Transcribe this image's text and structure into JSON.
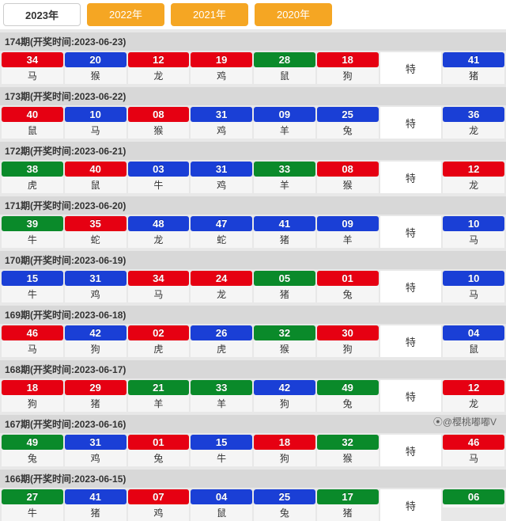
{
  "tabs": [
    "2023年",
    "2022年",
    "2021年",
    "2020年"
  ],
  "active_tab": 0,
  "special_label": "特",
  "colors": {
    "red": "#e60012",
    "blue": "#1a3fd6",
    "green": "#0a8a2a"
  },
  "watermark": "⦿@樱桃嘟嘟V",
  "periods": [
    {
      "period": "174",
      "date": "2023-06-23",
      "cells": [
        {
          "n": "34",
          "z": "马",
          "c": "red"
        },
        {
          "n": "20",
          "z": "猴",
          "c": "blue"
        },
        {
          "n": "12",
          "z": "龙",
          "c": "red"
        },
        {
          "n": "19",
          "z": "鸡",
          "c": "red"
        },
        {
          "n": "28",
          "z": "鼠",
          "c": "green"
        },
        {
          "n": "18",
          "z": "狗",
          "c": "red"
        },
        {
          "n": "41",
          "z": "猪",
          "c": "blue"
        }
      ]
    },
    {
      "period": "173",
      "date": "2023-06-22",
      "cells": [
        {
          "n": "40",
          "z": "鼠",
          "c": "red"
        },
        {
          "n": "10",
          "z": "马",
          "c": "blue"
        },
        {
          "n": "08",
          "z": "猴",
          "c": "red"
        },
        {
          "n": "31",
          "z": "鸡",
          "c": "blue"
        },
        {
          "n": "09",
          "z": "羊",
          "c": "blue"
        },
        {
          "n": "25",
          "z": "兔",
          "c": "blue"
        },
        {
          "n": "36",
          "z": "龙",
          "c": "blue"
        }
      ]
    },
    {
      "period": "172",
      "date": "2023-06-21",
      "cells": [
        {
          "n": "38",
          "z": "虎",
          "c": "green"
        },
        {
          "n": "40",
          "z": "鼠",
          "c": "red"
        },
        {
          "n": "03",
          "z": "牛",
          "c": "blue"
        },
        {
          "n": "31",
          "z": "鸡",
          "c": "blue"
        },
        {
          "n": "33",
          "z": "羊",
          "c": "green"
        },
        {
          "n": "08",
          "z": "猴",
          "c": "red"
        },
        {
          "n": "12",
          "z": "龙",
          "c": "red"
        }
      ]
    },
    {
      "period": "171",
      "date": "2023-06-20",
      "cells": [
        {
          "n": "39",
          "z": "牛",
          "c": "green"
        },
        {
          "n": "35",
          "z": "蛇",
          "c": "red"
        },
        {
          "n": "48",
          "z": "龙",
          "c": "blue"
        },
        {
          "n": "47",
          "z": "蛇",
          "c": "blue"
        },
        {
          "n": "41",
          "z": "猪",
          "c": "blue"
        },
        {
          "n": "09",
          "z": "羊",
          "c": "blue"
        },
        {
          "n": "10",
          "z": "马",
          "c": "blue"
        }
      ]
    },
    {
      "period": "170",
      "date": "2023-06-19",
      "cells": [
        {
          "n": "15",
          "z": "牛",
          "c": "blue"
        },
        {
          "n": "31",
          "z": "鸡",
          "c": "blue"
        },
        {
          "n": "34",
          "z": "马",
          "c": "red"
        },
        {
          "n": "24",
          "z": "龙",
          "c": "red"
        },
        {
          "n": "05",
          "z": "猪",
          "c": "green"
        },
        {
          "n": "01",
          "z": "兔",
          "c": "red"
        },
        {
          "n": "10",
          "z": "马",
          "c": "blue"
        }
      ]
    },
    {
      "period": "169",
      "date": "2023-06-18",
      "cells": [
        {
          "n": "46",
          "z": "马",
          "c": "red"
        },
        {
          "n": "42",
          "z": "狗",
          "c": "blue"
        },
        {
          "n": "02",
          "z": "虎",
          "c": "red"
        },
        {
          "n": "26",
          "z": "虎",
          "c": "blue"
        },
        {
          "n": "32",
          "z": "猴",
          "c": "green"
        },
        {
          "n": "30",
          "z": "狗",
          "c": "red"
        },
        {
          "n": "04",
          "z": "鼠",
          "c": "blue"
        }
      ]
    },
    {
      "period": "168",
      "date": "2023-06-17",
      "cells": [
        {
          "n": "18",
          "z": "狗",
          "c": "red"
        },
        {
          "n": "29",
          "z": "猪",
          "c": "red"
        },
        {
          "n": "21",
          "z": "羊",
          "c": "green"
        },
        {
          "n": "33",
          "z": "羊",
          "c": "green"
        },
        {
          "n": "42",
          "z": "狗",
          "c": "blue"
        },
        {
          "n": "49",
          "z": "兔",
          "c": "green"
        },
        {
          "n": "12",
          "z": "龙",
          "c": "red"
        }
      ]
    },
    {
      "period": "167",
      "date": "2023-06-16",
      "cells": [
        {
          "n": "49",
          "z": "兔",
          "c": "green"
        },
        {
          "n": "31",
          "z": "鸡",
          "c": "blue"
        },
        {
          "n": "01",
          "z": "兔",
          "c": "red"
        },
        {
          "n": "15",
          "z": "牛",
          "c": "blue"
        },
        {
          "n": "18",
          "z": "狗",
          "c": "red"
        },
        {
          "n": "32",
          "z": "猴",
          "c": "green"
        },
        {
          "n": "46",
          "z": "马",
          "c": "red"
        }
      ]
    },
    {
      "period": "166",
      "date": "2023-06-15",
      "cells": [
        {
          "n": "27",
          "z": "牛",
          "c": "green"
        },
        {
          "n": "41",
          "z": "猪",
          "c": "blue"
        },
        {
          "n": "07",
          "z": "鸡",
          "c": "red"
        },
        {
          "n": "04",
          "z": "鼠",
          "c": "blue"
        },
        {
          "n": "25",
          "z": "兔",
          "c": "blue"
        },
        {
          "n": "17",
          "z": "猪",
          "c": "green"
        },
        {
          "n": "06",
          "z": "",
          "c": "green"
        }
      ]
    }
  ]
}
